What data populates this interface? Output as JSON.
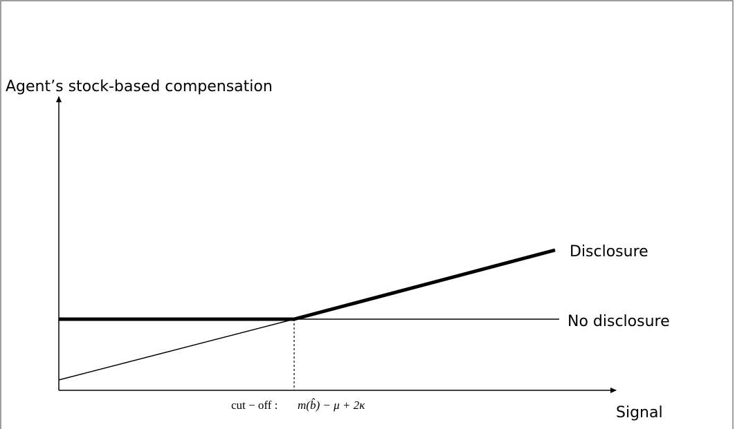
{
  "y_axis_label": "Agent’s stock-based compensation",
  "x_axis_label": "Signal",
  "lines": [
    {
      "label": "Disclosure"
    },
    {
      "label": "No disclosure"
    }
  ],
  "cutoff": {
    "prefix": "cut − off :",
    "expression": "m(b̂) − μ + 2κ"
  }
}
